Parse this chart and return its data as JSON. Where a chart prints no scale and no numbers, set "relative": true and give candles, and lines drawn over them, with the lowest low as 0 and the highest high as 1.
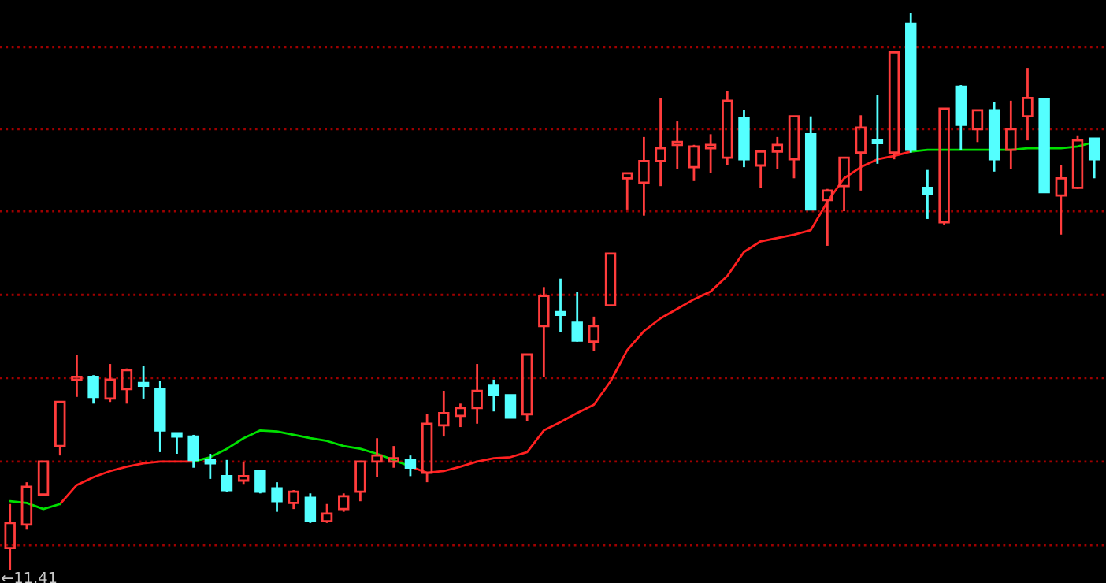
{
  "chart_data": {
    "type": "candlestick",
    "relative": true,
    "categories": [
      null,
      null,
      null,
      null,
      null,
      null,
      null,
      null,
      null,
      null,
      null,
      null,
      null,
      null,
      null,
      null,
      null,
      null,
      null,
      null,
      null,
      null,
      null,
      null,
      null,
      null,
      null,
      null,
      null,
      null,
      null,
      null,
      null,
      null,
      null,
      null,
      null,
      null,
      null,
      null,
      null,
      null,
      null,
      null,
      null,
      null,
      null,
      null,
      null,
      null,
      null,
      null,
      null,
      null,
      null,
      null,
      null,
      null,
      null,
      null,
      null,
      null,
      null,
      null,
      null,
      null
    ],
    "annotations": [
      "←11.41"
    ],
    "ref_lines": [
      {
        "axis": "y",
        "value": 0.938,
        "color": "#a00000",
        "line_style": "dotted"
      },
      {
        "axis": "y",
        "value": 0.791,
        "color": "#a00000",
        "line_style": "dotted"
      },
      {
        "axis": "y",
        "value": 0.644,
        "color": "#a00000",
        "line_style": "dotted"
      },
      {
        "axis": "y",
        "value": 0.494,
        "color": "#a00000",
        "line_style": "dotted"
      },
      {
        "axis": "y",
        "value": 0.345,
        "color": "#a00000",
        "line_style": "dotted"
      },
      {
        "axis": "y",
        "value": 0.195,
        "color": "#a00000",
        "line_style": "dotted"
      },
      {
        "axis": "y",
        "value": 0.045,
        "color": "#a00000",
        "line_style": "dotted"
      }
    ],
    "series": [
      {
        "type": "line",
        "color": "#ff2020",
        "values": [
          null,
          null,
          null,
          0.119,
          0.153,
          0.167,
          0.178,
          0.186,
          0.192,
          0.195,
          0.195,
          0.195,
          null,
          null,
          null,
          null,
          null,
          null,
          null,
          null,
          null,
          null,
          null,
          null,
          0.186,
          0.175,
          0.178,
          0.186,
          0.195,
          0.201,
          0.203,
          0.212,
          0.251,
          0.266,
          0.282,
          0.297,
          0.339,
          0.395,
          0.429,
          0.452,
          0.469,
          0.486,
          0.5,
          0.528,
          0.571,
          0.59,
          0.596,
          0.602,
          0.61,
          0.661,
          0.703,
          0.723,
          0.737,
          0.743,
          0.751,
          null,
          null,
          null,
          null,
          null,
          null,
          null,
          null,
          null,
          null,
          null
        ]
      },
      {
        "type": "line",
        "color": "#00e000",
        "values": [
          0.124,
          0.121,
          0.11,
          0.119,
          null,
          null,
          null,
          null,
          null,
          null,
          null,
          0.195,
          0.203,
          0.218,
          0.237,
          0.251,
          0.249,
          0.243,
          0.237,
          0.232,
          0.223,
          0.218,
          0.209,
          0.198,
          0.186,
          null,
          null,
          null,
          null,
          null,
          null,
          null,
          null,
          null,
          null,
          null,
          null,
          null,
          null,
          null,
          null,
          null,
          null,
          null,
          null,
          null,
          null,
          null,
          null,
          null,
          null,
          null,
          null,
          null,
          0.751,
          0.754,
          0.754,
          0.754,
          0.754,
          0.754,
          0.754,
          0.757,
          0.757,
          0.757,
          0.76,
          0.768
        ]
      },
      {
        "ohlc": [
          [
            0.04,
            0.119,
            0,
            0.085
          ],
          [
            0.082,
            0.158,
            0.073,
            0.15
          ],
          [
            0.136,
            0.195,
            0.133,
            0.195
          ],
          [
            0.223,
            0.302,
            0.206,
            0.302
          ],
          [
            0.342,
            0.387,
            0.311,
            0.347
          ],
          [
            0.347,
            0.35,
            0.299,
            0.311
          ],
          [
            0.308,
            0.37,
            0.302,
            0.342
          ],
          [
            0.325,
            0.362,
            0.299,
            0.359
          ],
          [
            0.336,
            0.367,
            0.308,
            0.331
          ],
          [
            0.325,
            0.339,
            0.212,
            0.251
          ],
          [
            0.246,
            0.246,
            0.209,
            0.24
          ],
          [
            0.24,
            0.243,
            0.184,
            0.198
          ],
          [
            0.198,
            0.209,
            0.164,
            0.192
          ],
          [
            0.169,
            0.198,
            0.141,
            0.144
          ],
          [
            0.161,
            0.195,
            0.155,
            0.169
          ],
          [
            0.178,
            0.178,
            0.138,
            0.141
          ],
          [
            0.147,
            0.158,
            0.105,
            0.124
          ],
          [
            0.121,
            0.144,
            0.11,
            0.141
          ],
          [
            0.13,
            0.138,
            0.085,
            0.088
          ],
          [
            0.088,
            0.119,
            0.085,
            0.102
          ],
          [
            0.11,
            0.138,
            0.105,
            0.133
          ],
          [
            0.141,
            0.195,
            0.124,
            0.195
          ],
          [
            0.195,
            0.237,
            0.167,
            0.206
          ],
          [
            0.195,
            0.223,
            0.184,
            0.201
          ],
          [
            0.198,
            0.206,
            0.169,
            0.184
          ],
          [
            0.175,
            0.28,
            0.158,
            0.263
          ],
          [
            0.26,
            0.322,
            0.24,
            0.282
          ],
          [
            0.277,
            0.299,
            0.257,
            0.291
          ],
          [
            0.291,
            0.37,
            0.263,
            0.322
          ],
          [
            0.331,
            0.342,
            0.285,
            0.314
          ],
          [
            0.314,
            0.314,
            0.274,
            0.274
          ],
          [
            0.28,
            0.387,
            0.268,
            0.387
          ],
          [
            0.438,
            0.508,
            0.347,
            0.492
          ],
          [
            0.463,
            0.523,
            0.427,
            0.458
          ],
          [
            0.444,
            0.5,
            0.41,
            0.412
          ],
          [
            0.41,
            0.455,
            0.393,
            0.438
          ],
          [
            0.475,
            0.568,
            0.475,
            0.568
          ],
          [
            0.703,
            0.712,
            0.647,
            0.712
          ],
          [
            0.695,
            0.777,
            0.636,
            0.734
          ],
          [
            0.734,
            0.847,
            0.689,
            0.757
          ],
          [
            0.763,
            0.805,
            0.72,
            0.768
          ],
          [
            0.723,
            0.763,
            0.698,
            0.76
          ],
          [
            0.757,
            0.782,
            0.712,
            0.763
          ],
          [
            0.74,
            0.859,
            0.726,
            0.842
          ],
          [
            0.811,
            0.825,
            0.723,
            0.737
          ],
          [
            0.726,
            0.754,
            0.686,
            0.751
          ],
          [
            0.751,
            0.777,
            0.72,
            0.763
          ],
          [
            0.737,
            0.814,
            0.703,
            0.814
          ],
          [
            0.782,
            0.814,
            0.647,
            0.647
          ],
          [
            0.664,
            0.684,
            0.582,
            0.681
          ],
          [
            0.689,
            0.74,
            0.644,
            0.74
          ],
          [
            0.749,
            0.816,
            0.681,
            0.794
          ],
          [
            0.771,
            0.853,
            0.729,
            0.766
          ],
          [
            0.749,
            0.929,
            0.737,
            0.929
          ],
          [
            0.98,
            1.0,
            0.749,
            0.754
          ],
          [
            0.686,
            0.718,
            0.63,
            0.675
          ],
          [
            0.624,
            0.828,
            0.619,
            0.828
          ],
          [
            0.867,
            0.87,
            0.754,
            0.799
          ],
          [
            0.791,
            0.825,
            0.768,
            0.825
          ],
          [
            0.825,
            0.839,
            0.715,
            0.737
          ],
          [
            0.754,
            0.842,
            0.72,
            0.791
          ],
          [
            0.814,
            0.901,
            0.771,
            0.847
          ],
          [
            0.845,
            0.847,
            0.678,
            0.678
          ],
          [
            0.672,
            0.726,
            0.602,
            0.703
          ],
          [
            0.686,
            0.78,
            0.684,
            0.771
          ],
          [
            0.774,
            0.774,
            0.703,
            0.737
          ]
        ],
        "colors": [
          "#ff3c3c",
          "#ff3c3c",
          "#ff3c3c",
          "#ff3c3c",
          "#ff3c3c",
          "#54ffff",
          "#ff3c3c",
          "#ff3c3c",
          "#54ffff",
          "#54ffff",
          "#54ffff",
          "#54ffff",
          "#54ffff",
          "#54ffff",
          "#ff3c3c",
          "#54ffff",
          "#54ffff",
          "#ff3c3c",
          "#54ffff",
          "#ff3c3c",
          "#ff3c3c",
          "#ff3c3c",
          "#ff3c3c",
          "#ff3c3c",
          "#54ffff",
          "#ff3c3c",
          "#ff3c3c",
          "#ff3c3c",
          "#ff3c3c",
          "#54ffff",
          "#54ffff",
          "#ff3c3c",
          "#ff3c3c",
          "#54ffff",
          "#54ffff",
          "#ff3c3c",
          "#ff3c3c",
          "#ff3c3c",
          "#ff3c3c",
          "#ff3c3c",
          "#ff3c3c",
          "#ff3c3c",
          "#ff3c3c",
          "#ff3c3c",
          "#54ffff",
          "#ff3c3c",
          "#ff3c3c",
          "#ff3c3c",
          "#54ffff",
          "#ff3c3c",
          "#ff3c3c",
          "#ff3c3c",
          "#54ffff",
          "#ff3c3c",
          "#54ffff",
          "#54ffff",
          "#ff3c3c",
          "#54ffff",
          "#ff3c3c",
          "#54ffff",
          "#ff3c3c",
          "#ff3c3c",
          "#54ffff",
          "#ff3c3c",
          "#ff3c3c",
          "#54ffff"
        ]
      }
    ]
  }
}
